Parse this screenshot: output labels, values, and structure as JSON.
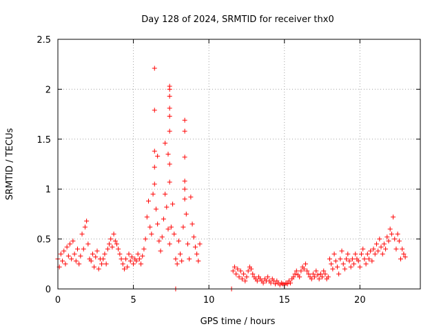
{
  "chart_data": {
    "type": "scatter",
    "title": "Day 128 of 2024, SRMTID for receiver thx0",
    "xlabel": "GPS time / hours",
    "ylabel": "SRMTID / TECUs",
    "xlim": [
      0,
      24
    ],
    "ylim": [
      0,
      2.5
    ],
    "xticks": [
      0,
      5,
      10,
      15,
      20
    ],
    "yticks": [
      0,
      0.5,
      1,
      1.5,
      2,
      2.5
    ],
    "grid": true,
    "marker": "+",
    "series": [
      {
        "name": "SRMTID",
        "color": "#ff0000",
        "points": [
          [
            0.0,
            0.3
          ],
          [
            0.1,
            0.22
          ],
          [
            0.2,
            0.35
          ],
          [
            0.3,
            0.28
          ],
          [
            0.4,
            0.38
          ],
          [
            0.5,
            0.25
          ],
          [
            0.6,
            0.42
          ],
          [
            0.7,
            0.33
          ],
          [
            0.8,
            0.45
          ],
          [
            0.9,
            0.3
          ],
          [
            1.0,
            0.48
          ],
          [
            1.1,
            0.35
          ],
          [
            1.2,
            0.28
          ],
          [
            1.3,
            0.4
          ],
          [
            1.4,
            0.25
          ],
          [
            1.5,
            0.33
          ],
          [
            1.6,
            0.55
          ],
          [
            1.7,
            0.4
          ],
          [
            1.8,
            0.62
          ],
          [
            1.9,
            0.68
          ],
          [
            2.0,
            0.45
          ],
          [
            2.1,
            0.3
          ],
          [
            2.2,
            0.28
          ],
          [
            2.3,
            0.35
          ],
          [
            2.4,
            0.22
          ],
          [
            2.5,
            0.32
          ],
          [
            2.6,
            0.38
          ],
          [
            2.7,
            0.2
          ],
          [
            2.8,
            0.3
          ],
          [
            2.9,
            0.25
          ],
          [
            3.0,
            0.3
          ],
          [
            3.1,
            0.35
          ],
          [
            3.2,
            0.25
          ],
          [
            3.3,
            0.4
          ],
          [
            3.4,
            0.45
          ],
          [
            3.5,
            0.5
          ],
          [
            3.6,
            0.42
          ],
          [
            3.7,
            0.55
          ],
          [
            3.8,
            0.48
          ],
          [
            3.9,
            0.45
          ],
          [
            4.0,
            0.4
          ],
          [
            4.1,
            0.35
          ],
          [
            4.2,
            0.3
          ],
          [
            4.3,
            0.25
          ],
          [
            4.4,
            0.2
          ],
          [
            4.5,
            0.3
          ],
          [
            4.6,
            0.22
          ],
          [
            4.7,
            0.35
          ],
          [
            4.8,
            0.28
          ],
          [
            4.9,
            0.32
          ],
          [
            5.0,
            0.25
          ],
          [
            5.1,
            0.3
          ],
          [
            5.2,
            0.28
          ],
          [
            5.3,
            0.35
          ],
          [
            5.4,
            0.3
          ],
          [
            5.5,
            0.25
          ],
          [
            5.6,
            0.33
          ],
          [
            5.7,
            0.4
          ],
          [
            5.8,
            0.5
          ],
          [
            5.9,
            0.72
          ],
          [
            6.0,
            0.88
          ],
          [
            6.1,
            0.62
          ],
          [
            6.2,
            0.55
          ],
          [
            6.3,
            0.95
          ],
          [
            6.4,
            1.05
          ],
          [
            6.5,
            0.8
          ],
          [
            6.6,
            0.65
          ],
          [
            6.7,
            0.48
          ],
          [
            6.8,
            0.38
          ],
          [
            6.9,
            0.52
          ],
          [
            7.0,
            0.7
          ],
          [
            7.1,
            0.95
          ],
          [
            7.2,
            0.82
          ],
          [
            7.3,
            0.6
          ],
          [
            7.4,
            0.45
          ],
          [
            7.5,
            0.62
          ],
          [
            7.6,
            0.85
          ],
          [
            7.7,
            0.55
          ],
          [
            7.8,
            0.3
          ],
          [
            7.9,
            0.25
          ],
          [
            8.0,
            0.48
          ],
          [
            8.1,
            0.35
          ],
          [
            8.2,
            0.28
          ],
          [
            8.3,
            0.62
          ],
          [
            8.4,
            0.9
          ],
          [
            8.5,
            0.75
          ],
          [
            8.6,
            0.45
          ],
          [
            8.7,
            0.3
          ],
          [
            8.8,
            0.92
          ],
          [
            8.9,
            0.65
          ],
          [
            9.0,
            0.52
          ],
          [
            9.1,
            0.42
          ],
          [
            9.2,
            0.35
          ],
          [
            9.3,
            0.28
          ],
          [
            9.4,
            0.45
          ],
          [
            6.4,
            2.21
          ],
          [
            6.4,
            1.79
          ],
          [
            6.4,
            1.38
          ],
          [
            6.4,
            1.22
          ],
          [
            6.6,
            1.33
          ],
          [
            7.1,
            1.46
          ],
          [
            7.3,
            1.35
          ],
          [
            7.4,
            2.03
          ],
          [
            7.4,
            2.0
          ],
          [
            7.4,
            1.93
          ],
          [
            7.4,
            1.81
          ],
          [
            7.4,
            1.73
          ],
          [
            7.4,
            1.58
          ],
          [
            7.4,
            1.25
          ],
          [
            7.4,
            1.07
          ],
          [
            8.4,
            1.69
          ],
          [
            8.4,
            1.58
          ],
          [
            8.4,
            1.32
          ],
          [
            8.4,
            1.08
          ],
          [
            8.4,
            1.0
          ],
          [
            7.8,
            0.0
          ],
          [
            11.5,
            0.0
          ],
          [
            11.6,
            0.18
          ],
          [
            11.7,
            0.22
          ],
          [
            11.8,
            0.15
          ],
          [
            11.9,
            0.2
          ],
          [
            12.0,
            0.12
          ],
          [
            12.1,
            0.18
          ],
          [
            12.2,
            0.1
          ],
          [
            12.3,
            0.15
          ],
          [
            12.4,
            0.08
          ],
          [
            12.5,
            0.12
          ],
          [
            12.6,
            0.18
          ],
          [
            12.7,
            0.22
          ],
          [
            12.8,
            0.2
          ],
          [
            12.9,
            0.15
          ],
          [
            13.0,
            0.12
          ],
          [
            13.1,
            0.1
          ],
          [
            13.2,
            0.08
          ],
          [
            13.3,
            0.12
          ],
          [
            13.4,
            0.1
          ],
          [
            13.5,
            0.08
          ],
          [
            13.6,
            0.06
          ],
          [
            13.7,
            0.1
          ],
          [
            13.8,
            0.08
          ],
          [
            13.9,
            0.12
          ],
          [
            14.0,
            0.08
          ],
          [
            14.1,
            0.06
          ],
          [
            14.2,
            0.1
          ],
          [
            14.3,
            0.08
          ],
          [
            14.4,
            0.05
          ],
          [
            14.5,
            0.08
          ],
          [
            14.6,
            0.06
          ],
          [
            14.7,
            0.04
          ],
          [
            14.8,
            0.06
          ],
          [
            14.9,
            0.05
          ],
          [
            15.0,
            0.04
          ],
          [
            15.1,
            0.06
          ],
          [
            15.2,
            0.05
          ],
          [
            15.3,
            0.08
          ],
          [
            15.4,
            0.06
          ],
          [
            15.5,
            0.1
          ],
          [
            15.6,
            0.12
          ],
          [
            15.7,
            0.15
          ],
          [
            15.8,
            0.18
          ],
          [
            15.9,
            0.14
          ],
          [
            16.0,
            0.12
          ],
          [
            16.1,
            0.18
          ],
          [
            16.2,
            0.22
          ],
          [
            16.3,
            0.2
          ],
          [
            16.4,
            0.25
          ],
          [
            16.5,
            0.18
          ],
          [
            16.6,
            0.15
          ],
          [
            16.7,
            0.12
          ],
          [
            16.8,
            0.1
          ],
          [
            16.9,
            0.15
          ],
          [
            17.0,
            0.12
          ],
          [
            17.1,
            0.18
          ],
          [
            17.2,
            0.14
          ],
          [
            17.3,
            0.1
          ],
          [
            17.4,
            0.15
          ],
          [
            17.5,
            0.12
          ],
          [
            17.6,
            0.18
          ],
          [
            17.7,
            0.15
          ],
          [
            17.8,
            0.1
          ],
          [
            17.9,
            0.12
          ],
          [
            18.0,
            0.3
          ],
          [
            18.1,
            0.25
          ],
          [
            18.2,
            0.2
          ],
          [
            18.3,
            0.35
          ],
          [
            18.4,
            0.28
          ],
          [
            18.5,
            0.22
          ],
          [
            18.6,
            0.15
          ],
          [
            18.7,
            0.3
          ],
          [
            18.8,
            0.38
          ],
          [
            18.9,
            0.25
          ],
          [
            19.0,
            0.2
          ],
          [
            19.1,
            0.3
          ],
          [
            19.2,
            0.35
          ],
          [
            19.3,
            0.28
          ],
          [
            19.4,
            0.22
          ],
          [
            19.5,
            0.3
          ],
          [
            19.6,
            0.25
          ],
          [
            19.7,
            0.35
          ],
          [
            19.8,
            0.3
          ],
          [
            19.9,
            0.28
          ],
          [
            20.0,
            0.22
          ],
          [
            20.1,
            0.35
          ],
          [
            20.2,
            0.4
          ],
          [
            20.3,
            0.3
          ],
          [
            20.4,
            0.25
          ],
          [
            20.5,
            0.35
          ],
          [
            20.6,
            0.3
          ],
          [
            20.7,
            0.38
          ],
          [
            20.8,
            0.28
          ],
          [
            20.9,
            0.4
          ],
          [
            21.0,
            0.35
          ],
          [
            21.1,
            0.45
          ],
          [
            21.2,
            0.38
          ],
          [
            21.3,
            0.5
          ],
          [
            21.4,
            0.42
          ],
          [
            21.5,
            0.35
          ],
          [
            21.6,
            0.45
          ],
          [
            21.7,
            0.4
          ],
          [
            21.8,
            0.52
          ],
          [
            21.9,
            0.48
          ],
          [
            22.0,
            0.6
          ],
          [
            22.1,
            0.55
          ],
          [
            22.2,
            0.72
          ],
          [
            22.3,
            0.5
          ],
          [
            22.4,
            0.4
          ],
          [
            22.5,
            0.55
          ],
          [
            22.6,
            0.48
          ],
          [
            22.7,
            0.3
          ],
          [
            22.8,
            0.4
          ],
          [
            22.9,
            0.35
          ],
          [
            23.0,
            0.32
          ]
        ]
      }
    ]
  }
}
